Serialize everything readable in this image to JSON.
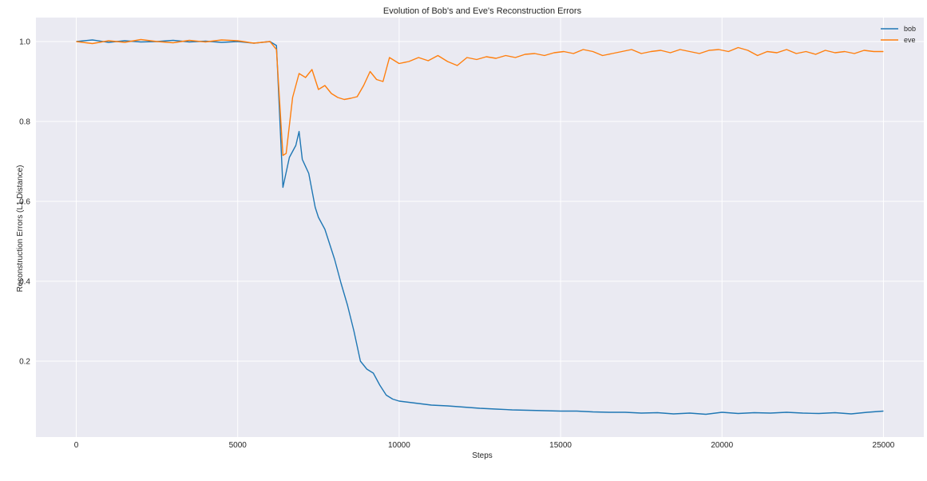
{
  "chart_data": {
    "type": "line",
    "title": "Evolution of Bob's and Eve's Reconstruction Errors",
    "xlabel": "Steps",
    "ylabel": "Reconstruction Errors (L1 Distance)",
    "xlim": [
      -1250,
      26250
    ],
    "ylim": [
      0.01,
      1.06
    ],
    "xticks": [
      0,
      5000,
      10000,
      15000,
      20000,
      25000
    ],
    "xtick_labels": [
      "0",
      "5000",
      "10000",
      "15000",
      "20000",
      "25000"
    ],
    "yticks": [
      0.2,
      0.4,
      0.6,
      0.8,
      1.0
    ],
    "ytick_labels": [
      "0.2",
      "0.4",
      "0.6",
      "0.8",
      "1.0"
    ],
    "grid": true,
    "legend_position": "top-right",
    "colors": {
      "background": "#eaeaf2",
      "grid": "#ffffff",
      "bob": "#1f77b4",
      "eve": "#ff7f0e"
    },
    "series": [
      {
        "name": "bob",
        "color": "#1f77b4",
        "x": [
          0,
          500,
          1000,
          1500,
          2000,
          2500,
          3000,
          3500,
          4000,
          4500,
          5000,
          5500,
          6000,
          6200,
          6400,
          6600,
          6800,
          6900,
          7000,
          7200,
          7400,
          7500,
          7700,
          7800,
          8000,
          8200,
          8400,
          8600,
          8800,
          9000,
          9200,
          9400,
          9600,
          9800,
          10000,
          10500,
          11000,
          11500,
          12000,
          12500,
          13000,
          13500,
          14000,
          14500,
          15000,
          15500,
          16000,
          16500,
          17000,
          17500,
          18000,
          18500,
          19000,
          19500,
          20000,
          20500,
          21000,
          21500,
          22000,
          22500,
          23000,
          23500,
          24000,
          24500,
          25000
        ],
        "values": [
          1.0,
          1.004,
          0.998,
          1.002,
          0.999,
          1.0,
          1.003,
          0.999,
          1.001,
          0.998,
          1.0,
          0.996,
          1.0,
          0.99,
          0.635,
          0.71,
          0.74,
          0.775,
          0.705,
          0.67,
          0.585,
          0.56,
          0.53,
          0.505,
          0.455,
          0.395,
          0.34,
          0.275,
          0.2,
          0.18,
          0.17,
          0.14,
          0.115,
          0.105,
          0.1,
          0.095,
          0.09,
          0.088,
          0.085,
          0.082,
          0.08,
          0.078,
          0.077,
          0.076,
          0.075,
          0.075,
          0.073,
          0.072,
          0.072,
          0.07,
          0.071,
          0.068,
          0.07,
          0.067,
          0.072,
          0.069,
          0.071,
          0.07,
          0.072,
          0.07,
          0.069,
          0.071,
          0.068,
          0.072,
          0.075
        ]
      },
      {
        "name": "eve",
        "color": "#ff7f0e",
        "x": [
          0,
          500,
          1000,
          1500,
          2000,
          2500,
          3000,
          3500,
          4000,
          4500,
          5000,
          5500,
          6000,
          6200,
          6400,
          6500,
          6700,
          6900,
          7100,
          7300,
          7500,
          7700,
          7900,
          8100,
          8300,
          8500,
          8700,
          8900,
          9100,
          9300,
          9500,
          9700,
          10000,
          10300,
          10600,
          10900,
          11200,
          11500,
          11800,
          12100,
          12400,
          12700,
          13000,
          13300,
          13600,
          13900,
          14200,
          14500,
          14800,
          15100,
          15400,
          15700,
          16000,
          16300,
          16600,
          16900,
          17200,
          17500,
          17800,
          18100,
          18400,
          18700,
          19000,
          19300,
          19600,
          19900,
          20200,
          20500,
          20800,
          21100,
          21400,
          21700,
          22000,
          22300,
          22600,
          22900,
          23200,
          23500,
          23800,
          24100,
          24400,
          24700,
          25000
        ],
        "values": [
          1.0,
          0.995,
          1.002,
          0.998,
          1.005,
          1.0,
          0.997,
          1.003,
          0.999,
          1.004,
          1.002,
          0.996,
          1.0,
          0.98,
          0.715,
          0.72,
          0.86,
          0.92,
          0.91,
          0.93,
          0.88,
          0.89,
          0.87,
          0.86,
          0.855,
          0.858,
          0.862,
          0.89,
          0.925,
          0.905,
          0.9,
          0.96,
          0.945,
          0.95,
          0.96,
          0.952,
          0.965,
          0.95,
          0.94,
          0.96,
          0.955,
          0.962,
          0.958,
          0.965,
          0.96,
          0.968,
          0.97,
          0.965,
          0.972,
          0.975,
          0.97,
          0.98,
          0.975,
          0.965,
          0.97,
          0.975,
          0.98,
          0.97,
          0.975,
          0.978,
          0.972,
          0.98,
          0.975,
          0.97,
          0.978,
          0.98,
          0.975,
          0.985,
          0.978,
          0.965,
          0.975,
          0.972,
          0.98,
          0.97,
          0.975,
          0.968,
          0.978,
          0.972,
          0.975,
          0.97,
          0.978,
          0.975,
          0.975
        ]
      }
    ]
  }
}
